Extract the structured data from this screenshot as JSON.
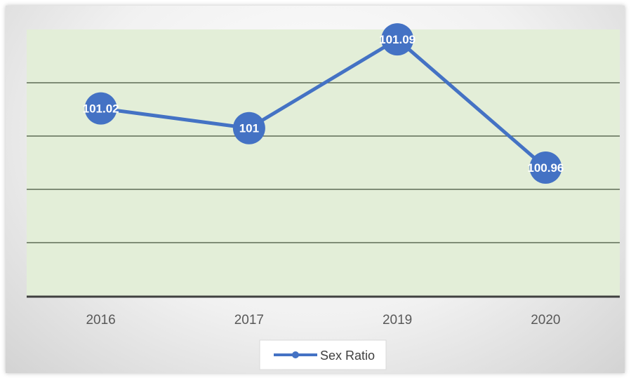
{
  "chart_data": {
    "type": "line",
    "categories": [
      "2016",
      "2017",
      "2019",
      "2020"
    ],
    "series": [
      {
        "name": "Sex Ratio",
        "values": [
          101.02,
          101,
          101.09,
          100.96
        ],
        "labels": [
          "101.02",
          "101",
          "101.09",
          "100.96"
        ]
      }
    ],
    "ylim": [
      100.83,
      101.1
    ],
    "grid": true,
    "legend": "bottom",
    "colors": {
      "line": "#4472C4",
      "plot_area": "#E3EED8",
      "gridline": "#5E6B55",
      "axis": "#404040"
    }
  }
}
